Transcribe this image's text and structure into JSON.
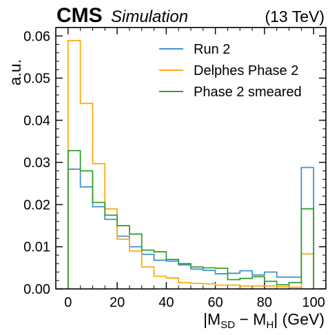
{
  "header": {
    "experiment": "CMS",
    "tag": "Simulation",
    "energy": "(13 TeV)"
  },
  "chart_data": {
    "type": "histogram-step",
    "xlabel": {
      "prefix": "|M",
      "sub1": "SD",
      "mid": " − M",
      "sub2": "H",
      "suffix": "| (GeV)"
    },
    "ylabel": "a.u.",
    "xlim": [
      -5,
      105
    ],
    "ylim": [
      0,
      0.062
    ],
    "xticks": [
      0,
      20,
      40,
      60,
      80,
      100
    ],
    "xtick_labels": [
      "0",
      "20",
      "40",
      "60",
      "80",
      "100"
    ],
    "yticks": [
      0.0,
      0.01,
      0.02,
      0.03,
      0.04,
      0.05,
      0.06
    ],
    "ytick_labels": [
      "0.00",
      "0.01",
      "0.02",
      "0.03",
      "0.04",
      "0.05",
      "0.06"
    ],
    "bin_edges": [
      0,
      5,
      10,
      15,
      20,
      25,
      30,
      35,
      40,
      45,
      50,
      55,
      60,
      65,
      70,
      75,
      80,
      85,
      90,
      95,
      100
    ],
    "legend_position": "upper-right",
    "series": [
      {
        "name": "Run 2",
        "color": "#3f90da",
        "values": [
          0.0284,
          0.0242,
          0.0195,
          0.0165,
          0.0125,
          0.01,
          0.0082,
          0.0068,
          0.0066,
          0.0057,
          0.0047,
          0.0044,
          0.0036,
          0.0037,
          0.0043,
          0.0033,
          0.004,
          0.0028,
          0.0028,
          0.0288
        ]
      },
      {
        "name": "Delphes Phase 2",
        "color": "#ffa90e",
        "values": [
          0.0589,
          0.044,
          0.0297,
          0.019,
          0.0118,
          0.009,
          0.0052,
          0.003,
          0.0026,
          0.0015,
          0.0013,
          0.0012,
          0.0009,
          0.0009,
          0.0007,
          0.0007,
          0.0007,
          0.0005,
          0.0004,
          0.0083
        ]
      },
      {
        "name": "Phase 2 smeared",
        "color": "#33a02c",
        "values": [
          0.0328,
          0.028,
          0.0205,
          0.0175,
          0.015,
          0.013,
          0.0092,
          0.0088,
          0.007,
          0.006,
          0.0052,
          0.005,
          0.0049,
          0.0022,
          0.0025,
          0.0029,
          0.0018,
          0.001,
          0.0015,
          0.019
        ]
      }
    ]
  }
}
